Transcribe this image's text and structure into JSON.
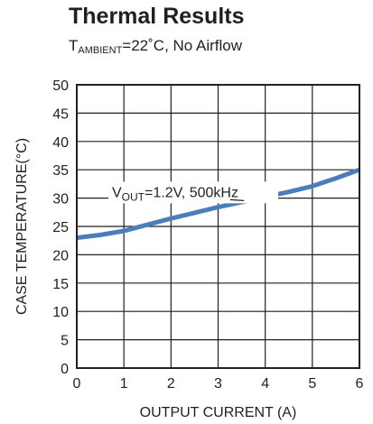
{
  "title": "Thermal Results",
  "subtitle": {
    "prefix": "T",
    "subscript": "AMBIENT",
    "suffix": "=22˚C, No Airflow"
  },
  "colors": {
    "series": "#4a7ebb",
    "grid": "#231f20"
  },
  "chart_data": {
    "type": "line",
    "title": "Thermal Results",
    "subtitle": "TAMBIENT=22˚C, No Airflow",
    "xlabel": "OUTPUT CURRENT (A)",
    "ylabel": "CASE TEMPERATURE(°C)",
    "xlim": [
      0,
      6
    ],
    "ylim": [
      0,
      50
    ],
    "xticks": [
      0,
      1,
      2,
      3,
      4,
      5,
      6
    ],
    "yticks": [
      0,
      5,
      10,
      15,
      20,
      25,
      30,
      35,
      40,
      45,
      50
    ],
    "grid": true,
    "series": [
      {
        "name": "VOUT=1.2V, 500kHz",
        "x": [
          0,
          0.5,
          1,
          1.5,
          2,
          2.5,
          3,
          3.5,
          4,
          4.5,
          5,
          5.5,
          6
        ],
        "y": [
          23,
          23.5,
          24.2,
          25.3,
          26.4,
          27.4,
          28.4,
          29.3,
          30.2,
          31.1,
          32.1,
          33.5,
          35
        ]
      }
    ],
    "annotation": {
      "prefix": "V",
      "subscript": "OUT",
      "suffix": "=1.2V, 500kHz",
      "points_to": {
        "x": 3.55,
        "y": 29.4
      }
    }
  }
}
